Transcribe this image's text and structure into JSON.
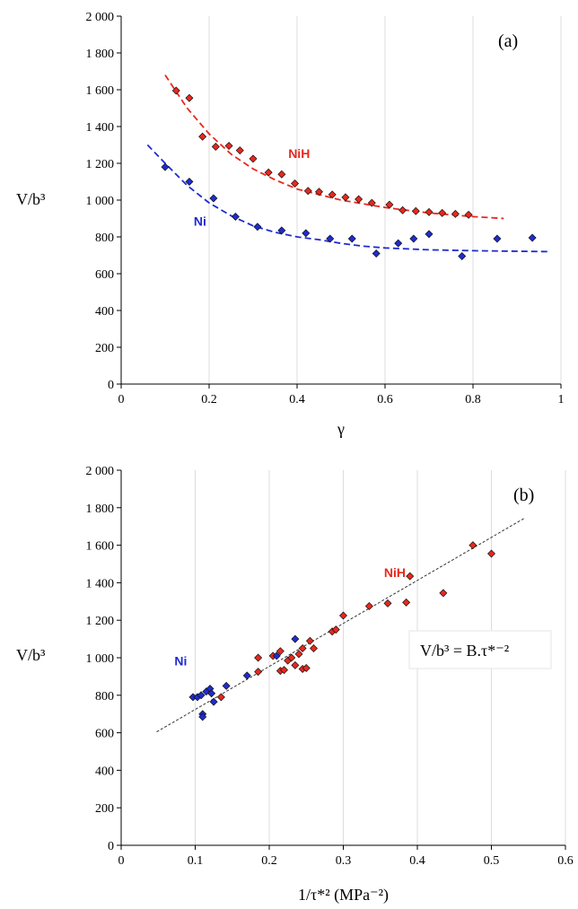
{
  "chart_data": [
    {
      "type": "scatter",
      "panel_label": "(a)",
      "xlabel": "γ",
      "ylabel": "V/b³",
      "xlim": [
        0,
        1
      ],
      "ylim": [
        0,
        2000
      ],
      "x_ticks": [
        {
          "value": 0,
          "label": "0"
        },
        {
          "value": 0.2,
          "label": "0.2"
        },
        {
          "value": 0.4,
          "label": "0.4"
        },
        {
          "value": 0.6,
          "label": "0.6"
        },
        {
          "value": 0.8,
          "label": "0.8"
        },
        {
          "value": 1,
          "label": "1"
        }
      ],
      "y_ticks": [
        {
          "value": 0,
          "label": "0"
        },
        {
          "value": 200,
          "label": "200"
        },
        {
          "value": 400,
          "label": "400"
        },
        {
          "value": 600,
          "label": "600"
        },
        {
          "value": 800,
          "label": "800"
        },
        {
          "value": 1000,
          "label": "1 000"
        },
        {
          "value": 1200,
          "label": "1 200"
        },
        {
          "value": 1400,
          "label": "1 400"
        },
        {
          "value": 1600,
          "label": "1 600"
        },
        {
          "value": 1800,
          "label": "1 800"
        },
        {
          "value": 2000,
          "label": "2 000"
        }
      ],
      "grid": "vertical",
      "series": [
        {
          "name": "NiH",
          "color": "#e8281e",
          "label_at": [
            0.38,
            1230
          ],
          "points": [
            [
              0.125,
              1595
            ],
            [
              0.155,
              1555
            ],
            [
              0.185,
              1345
            ],
            [
              0.215,
              1290
            ],
            [
              0.245,
              1295
            ],
            [
              0.27,
              1270
            ],
            [
              0.3,
              1225
            ],
            [
              0.335,
              1150
            ],
            [
              0.365,
              1140
            ],
            [
              0.395,
              1090
            ],
            [
              0.425,
              1050
            ],
            [
              0.45,
              1045
            ],
            [
              0.48,
              1030
            ],
            [
              0.51,
              1015
            ],
            [
              0.54,
              1005
            ],
            [
              0.57,
              985
            ],
            [
              0.61,
              975
            ],
            [
              0.64,
              945
            ],
            [
              0.67,
              940
            ],
            [
              0.7,
              935
            ],
            [
              0.73,
              930
            ],
            [
              0.76,
              925
            ],
            [
              0.79,
              920
            ]
          ],
          "fit": [
            [
              0.1,
              1680
            ],
            [
              0.15,
              1500
            ],
            [
              0.2,
              1360
            ],
            [
              0.25,
              1250
            ],
            [
              0.3,
              1170
            ],
            [
              0.35,
              1110
            ],
            [
              0.4,
              1060
            ],
            [
              0.45,
              1030
            ],
            [
              0.5,
              1000
            ],
            [
              0.55,
              980
            ],
            [
              0.6,
              960
            ],
            [
              0.65,
              945
            ],
            [
              0.7,
              930
            ],
            [
              0.75,
              920
            ],
            [
              0.8,
              910
            ],
            [
              0.87,
              900
            ]
          ]
        },
        {
          "name": "Ni",
          "color": "#1f2bd0",
          "label_at": [
            0.165,
            860
          ],
          "points": [
            [
              0.1,
              1180
            ],
            [
              0.155,
              1100
            ],
            [
              0.21,
              1010
            ],
            [
              0.26,
              910
            ],
            [
              0.31,
              855
            ],
            [
              0.365,
              835
            ],
            [
              0.42,
              820
            ],
            [
              0.475,
              790
            ],
            [
              0.525,
              790
            ],
            [
              0.58,
              710
            ],
            [
              0.63,
              765
            ],
            [
              0.665,
              790
            ],
            [
              0.7,
              815
            ],
            [
              0.775,
              695
            ],
            [
              0.855,
              790
            ],
            [
              0.935,
              795
            ]
          ],
          "fit": [
            [
              0.06,
              1300
            ],
            [
              0.1,
              1200
            ],
            [
              0.15,
              1080
            ],
            [
              0.2,
              985
            ],
            [
              0.25,
              915
            ],
            [
              0.3,
              860
            ],
            [
              0.35,
              825
            ],
            [
              0.4,
              800
            ],
            [
              0.45,
              785
            ],
            [
              0.5,
              765
            ],
            [
              0.55,
              750
            ],
            [
              0.6,
              740
            ],
            [
              0.7,
              730
            ],
            [
              0.8,
              725
            ],
            [
              0.9,
              722
            ],
            [
              0.97,
              720
            ]
          ]
        }
      ]
    },
    {
      "type": "scatter",
      "panel_label": "(b)",
      "xlabel": "1/τ*² (MPa⁻²)",
      "ylabel": "V/b³",
      "xlim": [
        0,
        0.6
      ],
      "ylim": [
        0,
        2000
      ],
      "annotation": "V/b³ = B.τ*⁻²",
      "x_ticks": [
        {
          "value": 0,
          "label": "0"
        },
        {
          "value": 0.1,
          "label": "0.1"
        },
        {
          "value": 0.2,
          "label": "0.2"
        },
        {
          "value": 0.3,
          "label": "0.3"
        },
        {
          "value": 0.4,
          "label": "0.4"
        },
        {
          "value": 0.5,
          "label": "0.5"
        },
        {
          "value": 0.6,
          "label": "0.6"
        }
      ],
      "y_ticks": [
        {
          "value": 0,
          "label": "0"
        },
        {
          "value": 200,
          "label": "200"
        },
        {
          "value": 400,
          "label": "400"
        },
        {
          "value": 600,
          "label": "600"
        },
        {
          "value": 800,
          "label": "800"
        },
        {
          "value": 1000,
          "label": "1 000"
        },
        {
          "value": 1200,
          "label": "1 200"
        },
        {
          "value": 1400,
          "label": "1 400"
        },
        {
          "value": 1600,
          "label": "1 600"
        },
        {
          "value": 1800,
          "label": "1 800"
        },
        {
          "value": 2000,
          "label": "2 000"
        }
      ],
      "grid": "vertical",
      "series": [
        {
          "name": "NiH",
          "color": "#e8281e",
          "label_at": [
            0.355,
            1430
          ],
          "points": [
            [
              0.135,
              790
            ],
            [
              0.185,
              925
            ],
            [
              0.185,
              1000
            ],
            [
              0.205,
              1010
            ],
            [
              0.215,
              930
            ],
            [
              0.215,
              1035
            ],
            [
              0.22,
              935
            ],
            [
              0.225,
              985
            ],
            [
              0.23,
              1000
            ],
            [
              0.235,
              960
            ],
            [
              0.24,
              1020
            ],
            [
              0.245,
              940
            ],
            [
              0.245,
              1050
            ],
            [
              0.25,
              945
            ],
            [
              0.255,
              1090
            ],
            [
              0.26,
              1050
            ],
            [
              0.285,
              1140
            ],
            [
              0.29,
              1150
            ],
            [
              0.3,
              1225
            ],
            [
              0.335,
              1275
            ],
            [
              0.36,
              1290
            ],
            [
              0.385,
              1295
            ],
            [
              0.39,
              1435
            ],
            [
              0.435,
              1345
            ],
            [
              0.475,
              1600
            ],
            [
              0.5,
              1555
            ]
          ]
        },
        {
          "name": "Ni",
          "color": "#1f2bd0",
          "label_at": [
            0.072,
            960
          ],
          "points": [
            [
              0.097,
              790
            ],
            [
              0.103,
              790
            ],
            [
              0.108,
              800
            ],
            [
              0.11,
              700
            ],
            [
              0.11,
              685
            ],
            [
              0.115,
              820
            ],
            [
              0.12,
              835
            ],
            [
              0.122,
              810
            ],
            [
              0.125,
              765
            ],
            [
              0.142,
              850
            ],
            [
              0.17,
              905
            ],
            [
              0.21,
              1010
            ],
            [
              0.235,
              1100
            ]
          ]
        }
      ],
      "fit": [
        [
          0.048,
          605
        ],
        [
          0.545,
          1745
        ]
      ]
    }
  ]
}
